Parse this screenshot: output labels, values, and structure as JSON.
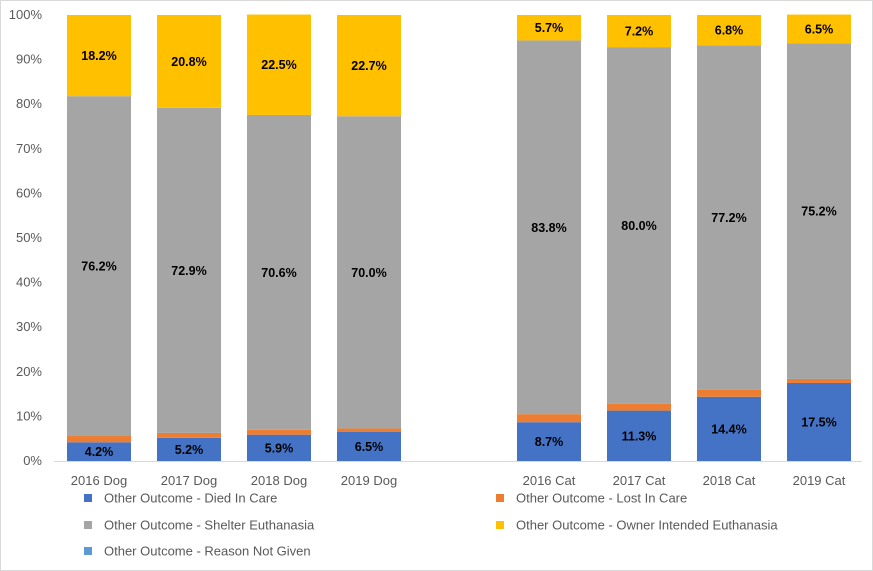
{
  "chart_data": {
    "type": "bar",
    "stacked": "percent",
    "categories": [
      "2016 Dog",
      "2017 Dog",
      "2018 Dog",
      "2019 Dog",
      "2016 Cat",
      "2017 Cat",
      "2018 Cat",
      "2019 Cat"
    ],
    "series": [
      {
        "name": "Other Outcome - Died In Care",
        "color": "#4472C4",
        "values": [
          4.2,
          5.2,
          5.9,
          6.5,
          8.7,
          11.3,
          14.4,
          17.5
        ],
        "labels": [
          "4.2%",
          "5.2%",
          "5.9%",
          "6.5%",
          "8.7%",
          "11.3%",
          "14.4%",
          "17.5%"
        ]
      },
      {
        "name": "Other Outcome - Lost In Care",
        "color": "#ED7D31",
        "values": [
          1.4,
          1.1,
          1.1,
          0.8,
          1.8,
          1.5,
          1.6,
          0.9
        ],
        "labels": [
          "1.4%",
          "1.1%",
          "1.1%",
          "0.8%",
          "1.8%",
          "1.5%",
          "1.6%",
          "0.9%"
        ]
      },
      {
        "name": "Other Outcome - Shelter Euthanasia",
        "color": "#A5A5A5",
        "values": [
          76.2,
          72.9,
          70.6,
          70.0,
          83.8,
          80.0,
          77.2,
          75.2
        ],
        "labels": [
          "76.2%",
          "72.9%",
          "70.6%",
          "70.0%",
          "83.8%",
          "80.0%",
          "77.2%",
          "75.2%"
        ]
      },
      {
        "name": "Other Outcome - Owner Intended Euthanasia",
        "color": "#FFC000",
        "values": [
          18.2,
          20.8,
          22.5,
          22.7,
          5.7,
          7.2,
          6.8,
          6.5
        ],
        "labels": [
          "18.2%",
          "20.8%",
          "22.5%",
          "22.7%",
          "5.7%",
          "7.2%",
          "6.8%",
          "6.5%"
        ]
      },
      {
        "name": "Other Outcome - Reason Not Given",
        "color": "#5B9BD5",
        "values": [
          0,
          0,
          0,
          0,
          0,
          0,
          0,
          0
        ]
      }
    ],
    "ylim": [
      0,
      100
    ],
    "yticks": [
      "0%",
      "10%",
      "20%",
      "30%",
      "40%",
      "50%",
      "60%",
      "70%",
      "80%",
      "90%",
      "100%"
    ],
    "grid": false,
    "legend": "bottom"
  }
}
